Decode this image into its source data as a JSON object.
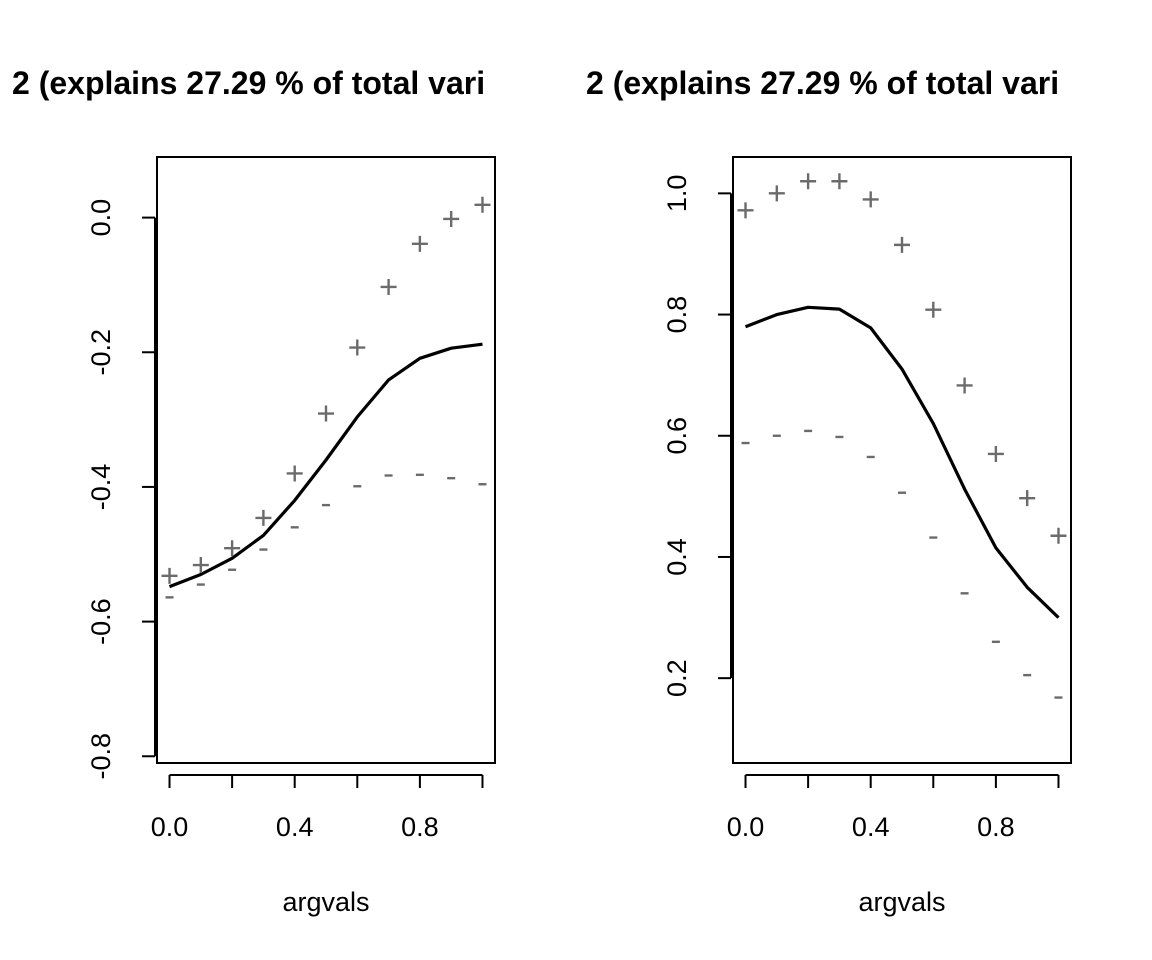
{
  "chart_data": [
    {
      "type": "line",
      "title": "2 (explains 27.29 % of total vari",
      "xlabel": "argvals",
      "ylabel": "",
      "xlim": [
        -0.04,
        1.04
      ],
      "ylim": [
        -0.81,
        0.09
      ],
      "xticks": [
        0.0,
        0.2,
        0.4,
        0.6,
        0.8,
        1.0
      ],
      "xtick_labels": [
        "0.0",
        "",
        "0.4",
        "",
        "0.8",
        ""
      ],
      "yticks": [
        -0.8,
        -0.6,
        -0.4,
        -0.2,
        0.0
      ],
      "ytick_labels": [
        "-0.8",
        "-0.6",
        "-0.4",
        "-0.2",
        "0.0"
      ],
      "x": [
        0.0,
        0.1,
        0.2,
        0.3,
        0.4,
        0.5,
        0.6,
        0.7,
        0.8,
        0.9,
        1.0
      ],
      "series": [
        {
          "values": [
            -0.548,
            -0.53,
            -0.506,
            -0.472,
            -0.42,
            -0.36,
            -0.296,
            -0.241,
            -0.209,
            -0.194,
            -0.188
          ],
          "style": "line",
          "color": "#000000"
        },
        {
          "marker": "+",
          "values": [
            -0.532,
            -0.516,
            -0.491,
            -0.446,
            -0.38,
            -0.291,
            -0.193,
            -0.103,
            -0.039,
            -0.002,
            0.019
          ],
          "style": "marker",
          "color": "#6b6b6b"
        },
        {
          "marker": "-",
          "values": [
            -0.564,
            -0.545,
            -0.523,
            -0.493,
            -0.46,
            -0.427,
            -0.399,
            -0.383,
            -0.382,
            -0.387,
            -0.396
          ],
          "style": "marker",
          "color": "#6b6b6b"
        }
      ]
    },
    {
      "type": "line",
      "title": "2 (explains 27.29 % of total vari",
      "xlabel": "argvals",
      "ylabel": "",
      "xlim": [
        -0.04,
        1.04
      ],
      "ylim": [
        0.06,
        1.06
      ],
      "xticks": [
        0.0,
        0.2,
        0.4,
        0.6,
        0.8,
        1.0
      ],
      "xtick_labels": [
        "0.0",
        "",
        "0.4",
        "",
        "0.8",
        ""
      ],
      "yticks": [
        0.2,
        0.4,
        0.6,
        0.8,
        1.0
      ],
      "ytick_labels": [
        "0.2",
        "0.4",
        "0.6",
        "0.8",
        "1.0"
      ],
      "x": [
        0.0,
        0.1,
        0.2,
        0.3,
        0.4,
        0.5,
        0.6,
        0.7,
        0.8,
        0.9,
        1.0
      ],
      "series": [
        {
          "values": [
            0.78,
            0.8,
            0.812,
            0.809,
            0.778,
            0.71,
            0.62,
            0.512,
            0.415,
            0.35,
            0.3
          ],
          "style": "line",
          "color": "#000000"
        },
        {
          "marker": "+",
          "values": [
            0.972,
            1.0,
            1.02,
            1.02,
            0.99,
            0.915,
            0.808,
            0.683,
            0.57,
            0.497,
            0.435
          ],
          "style": "marker",
          "color": "#6b6b6b"
        },
        {
          "marker": "-",
          "values": [
            0.588,
            0.6,
            0.608,
            0.598,
            0.565,
            0.506,
            0.432,
            0.34,
            0.26,
            0.205,
            0.168
          ],
          "style": "marker",
          "color": "#6b6b6b"
        }
      ]
    }
  ]
}
